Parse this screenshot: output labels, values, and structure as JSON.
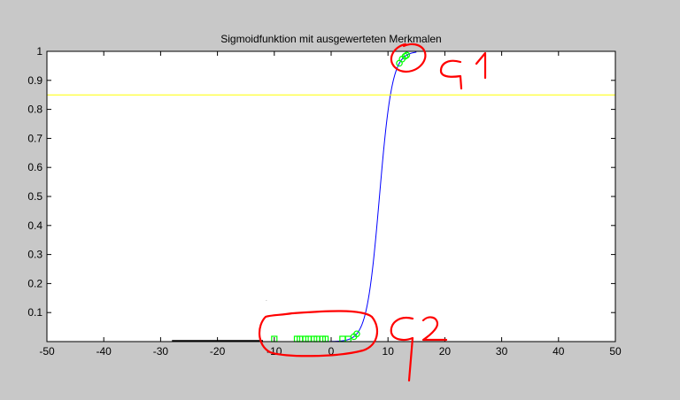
{
  "chart_data": {
    "type": "line",
    "title": "Sigmoidfunktion mit ausgewerteten Merkmalen",
    "xlabel": "",
    "ylabel": "",
    "xlim": [
      -50,
      50
    ],
    "ylim": [
      0,
      1
    ],
    "x_ticks": [
      -50,
      -40,
      -30,
      -20,
      -10,
      0,
      10,
      20,
      30,
      40,
      50
    ],
    "x_tick_labels": [
      "-50",
      "-40",
      "-30",
      "-20",
      "-10",
      "0",
      "10",
      "20",
      "30",
      "40",
      "50"
    ],
    "y_ticks": [
      0.1,
      0.2,
      0.3,
      0.4,
      0.5,
      0.6,
      0.7,
      0.8,
      0.9,
      1
    ],
    "y_tick_labels": [
      "0.1",
      "0.2",
      "0.3",
      "0.4",
      "0.5",
      "0.6",
      "0.7",
      "0.8",
      "0.9",
      "1"
    ],
    "grid": false,
    "legend": "none",
    "series": [
      {
        "kind": "line",
        "color": "#0000ff",
        "sigmoid": {
          "midpoint": 8.5,
          "slope": 0.9
        },
        "x_range": [
          -50,
          15
        ]
      },
      {
        "kind": "line",
        "color": "#000000",
        "x_range": [
          -28,
          -12
        ],
        "y": 0
      },
      {
        "kind": "threshold",
        "color": "#ffff00",
        "y": 0.85
      },
      {
        "kind": "markers",
        "color": "#00ff00",
        "marker": "square",
        "x": [
          -10,
          -6,
          -5.5,
          -4.5,
          -4,
          -3,
          -2.5,
          -1.5,
          -1,
          2,
          3
        ]
      },
      {
        "kind": "markers",
        "color": "#00ff00",
        "marker": "circle",
        "x": [
          4,
          4.5
        ]
      },
      {
        "kind": "markers",
        "color": "#00ff00",
        "marker": "circle",
        "x": [
          12,
          12.5,
          13,
          13.3
        ]
      }
    ],
    "annotations": [
      {
        "text": "G1",
        "color": "#ff0000",
        "style": "handwritten"
      },
      {
        "text": "G2",
        "color": "#ff0000",
        "style": "handwritten"
      }
    ]
  }
}
